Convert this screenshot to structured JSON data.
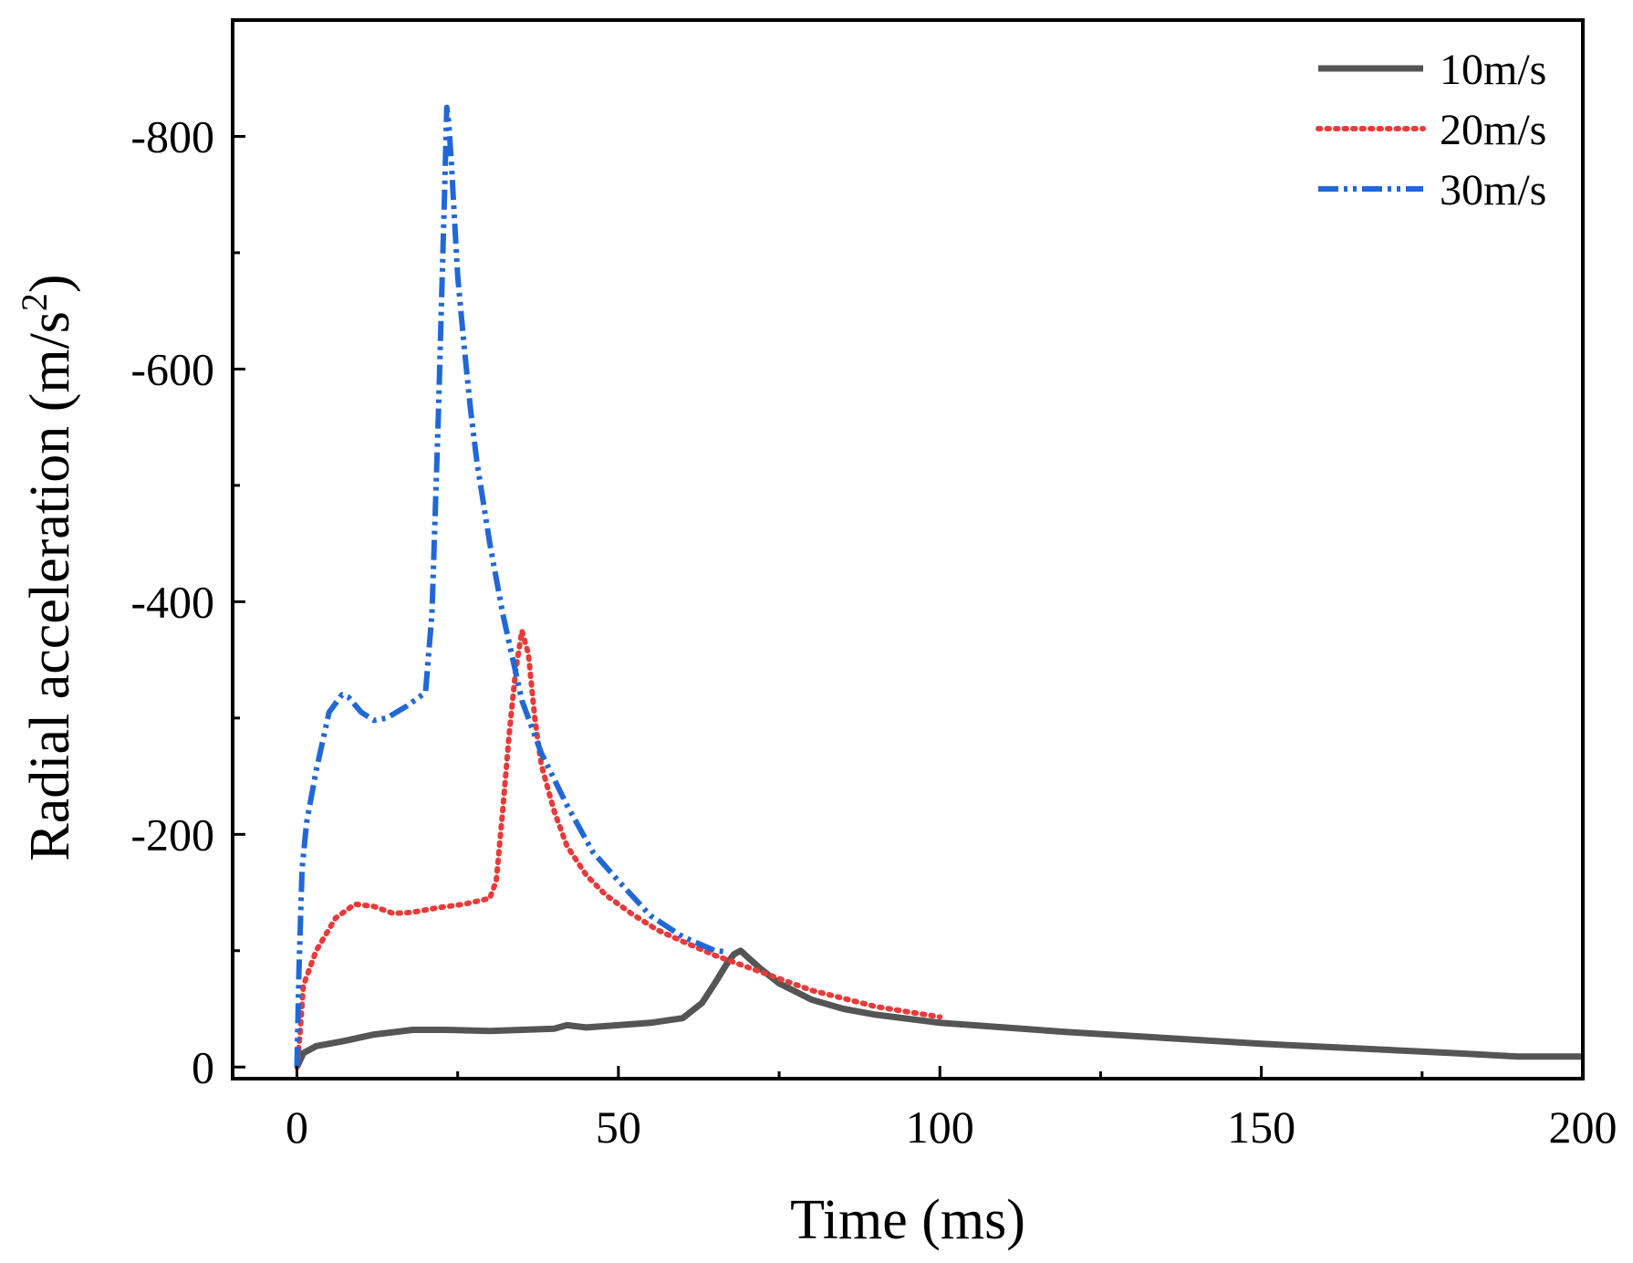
{
  "chart_data": {
    "type": "line",
    "title": "",
    "xlabel": "Time (ms)",
    "ylabel_main": "Radial acceleration (m/s",
    "ylabel_sup": "2",
    "ylabel_end": ")",
    "xlim": [
      -10,
      200
    ],
    "ylim": [
      10,
      -900
    ],
    "x_ticks": [
      0,
      50,
      100,
      150,
      200
    ],
    "y_ticks": [
      0,
      -200,
      -400,
      -600,
      -800
    ],
    "x_tick_labels": [
      "0",
      "50",
      "100",
      "150",
      "200"
    ],
    "y_tick_labels": [
      "0",
      "-200",
      "-400",
      "-600",
      "-800"
    ],
    "grid": false,
    "legend_position": "top-right",
    "series": [
      {
        "name": "10m/s",
        "color": "#555555",
        "style": "solid",
        "x": [
          0,
          1,
          3,
          7,
          12,
          18,
          23,
          30,
          35,
          40,
          42,
          45,
          50,
          55,
          60,
          63,
          65,
          67,
          68,
          69,
          70,
          72,
          75,
          80,
          85,
          90,
          100,
          120,
          150,
          180,
          190,
          200
        ],
        "y": [
          0,
          -12,
          -18,
          -22,
          -28,
          -32,
          -32,
          -31,
          -32,
          -33,
          -36,
          -34,
          -36,
          -38,
          -42,
          -55,
          -72,
          -90,
          -97,
          -100,
          -95,
          -85,
          -72,
          -58,
          -50,
          -45,
          -38,
          -30,
          -20,
          -12,
          -9,
          -9
        ]
      },
      {
        "name": "20m/s",
        "color": "#e83a3a",
        "style": "dotted",
        "x": [
          0,
          0.5,
          1,
          3,
          6,
          9,
          12,
          15,
          18,
          22,
          26,
          30,
          31,
          32,
          33,
          34,
          35,
          36,
          37,
          38,
          40,
          42,
          45,
          48,
          52,
          56,
          60,
          65,
          70,
          80,
          90,
          100
        ],
        "y": [
          0,
          -30,
          -70,
          -100,
          -128,
          -140,
          -138,
          -132,
          -133,
          -137,
          -140,
          -145,
          -160,
          -220,
          -285,
          -340,
          -375,
          -355,
          -300,
          -260,
          -220,
          -190,
          -165,
          -148,
          -132,
          -118,
          -108,
          -96,
          -86,
          -66,
          -52,
          -43
        ]
      },
      {
        "name": "30m/s",
        "color": "#2068d8",
        "style": "dashdotdot",
        "x": [
          0,
          0.3,
          0.8,
          1.5,
          3,
          5,
          7,
          8,
          10,
          12,
          14,
          17,
          20,
          21,
          22,
          23,
          23.3,
          23.6,
          24,
          24.5,
          25,
          26,
          27,
          28,
          30,
          32,
          35,
          38,
          42,
          46,
          50,
          55,
          60,
          65,
          67
        ],
        "y": [
          0,
          -80,
          -170,
          -210,
          -255,
          -305,
          -320,
          -318,
          -305,
          -298,
          -300,
          -310,
          -322,
          -390,
          -560,
          -760,
          -825,
          -812,
          -780,
          -730,
          -680,
          -620,
          -565,
          -520,
          -450,
          -390,
          -315,
          -270,
          -225,
          -185,
          -160,
          -130,
          -112,
          -100,
          -99
        ]
      }
    ]
  }
}
